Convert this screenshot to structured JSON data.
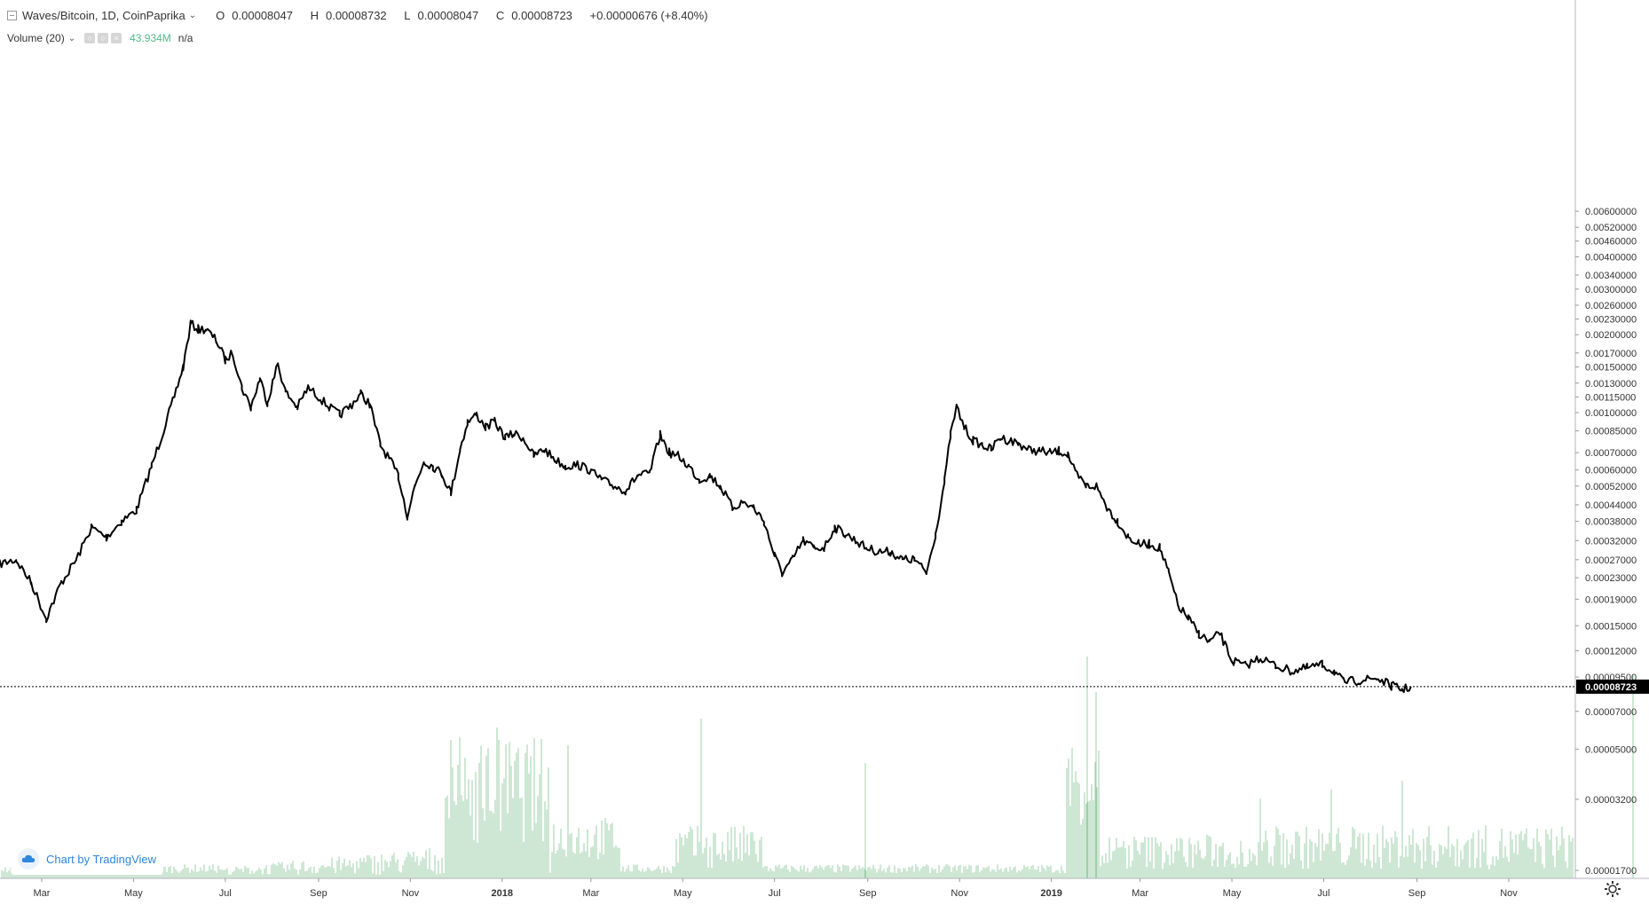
{
  "legend": {
    "title": "Waves/Bitcoin, 1D, CoinPaprika",
    "ohlc": [
      {
        "k": "O",
        "v": "0.00008047"
      },
      {
        "k": "H",
        "v": "0.00008732"
      },
      {
        "k": "L",
        "v": "0.00008047"
      },
      {
        "k": "C",
        "v": "0.00008723"
      }
    ],
    "change": "+0.00000676 (+8.40%)",
    "volume_label": "Volume (20)",
    "volume_value": "43.934M",
    "volume_ma": "n/a"
  },
  "attribution": "Chart by TradingView",
  "colors": {
    "candle": "#000000",
    "volume": "#8cc79a",
    "accent": "#2e86de",
    "price_tag": "#000000"
  },
  "chart_data": {
    "type": "line",
    "price_axis_labels": [
      0.006,
      0.0052,
      0.0046,
      0.004,
      0.0034,
      0.003,
      0.0026,
      0.0023,
      0.002,
      0.0017,
      0.0015,
      0.0013,
      0.00115,
      0.001,
      0.00085,
      0.0007,
      0.0006,
      0.00052,
      0.00044,
      0.00038,
      0.00032,
      0.00027,
      0.00023,
      0.00019,
      0.00015,
      0.00012,
      9.5e-05,
      7e-05,
      5e-05,
      3.2e-05,
      1.7e-05
    ],
    "price_axis_text": [
      "0.00600000",
      "0.00520000",
      "0.00460000",
      "0.00400000",
      "0.00340000",
      "0.00300000",
      "0.00260000",
      "0.00230000",
      "0.00200000",
      "0.00170000",
      "0.00150000",
      "0.00130000",
      "0.00115000",
      "0.00100000",
      "0.00085000",
      "0.00070000",
      "0.00060000",
      "0.00052000",
      "0.00044000",
      "0.00038000",
      "0.00032000",
      "0.00027000",
      "0.00023000",
      "0.00019000",
      "0.00015000",
      "0.00012000",
      "0.00009500",
      "0.00007000",
      "0.00005000",
      "0.00003200",
      "0.00001700"
    ],
    "last_price": 8.723e-05,
    "last_price_text": "0.00008723",
    "time_labels": [
      "Mar",
      "May",
      "Jul",
      "Sep",
      "Nov",
      "2018",
      "Mar",
      "May",
      "Jul",
      "Sep",
      "Nov",
      "2019",
      "Mar",
      "May",
      "Jul",
      "Sep",
      "Nov"
    ],
    "time_label_dates": [
      "2017-03-01",
      "2017-05-01",
      "2017-07-01",
      "2017-09-01",
      "2017-11-01",
      "2018-01-01",
      "2018-03-01",
      "2018-05-01",
      "2018-07-01",
      "2018-09-01",
      "2018-11-01",
      "2019-01-01",
      "2019-03-01",
      "2019-05-01",
      "2019-07-01",
      "2019-09-01",
      "2019-11-01"
    ],
    "price_series": [
      [
        "2017-02-01",
        0.00026
      ],
      [
        "2017-02-12",
        0.00027
      ],
      [
        "2017-02-22",
        0.00022
      ],
      [
        "2017-03-04",
        0.00016
      ],
      [
        "2017-03-14",
        0.00022
      ],
      [
        "2017-03-24",
        0.00027
      ],
      [
        "2017-04-03",
        0.00036
      ],
      [
        "2017-04-13",
        0.00033
      ],
      [
        "2017-04-23",
        0.00038
      ],
      [
        "2017-05-03",
        0.00042
      ],
      [
        "2017-05-13",
        0.00062
      ],
      [
        "2017-05-20",
        0.00082
      ],
      [
        "2017-05-27",
        0.0011
      ],
      [
        "2017-06-03",
        0.0015
      ],
      [
        "2017-06-08",
        0.0022
      ],
      [
        "2017-06-13",
        0.0021
      ],
      [
        "2017-06-18",
        0.0021
      ],
      [
        "2017-06-25",
        0.0019
      ],
      [
        "2017-07-01",
        0.0016
      ],
      [
        "2017-07-06",
        0.0017
      ],
      [
        "2017-07-12",
        0.00125
      ],
      [
        "2017-07-18",
        0.00105
      ],
      [
        "2017-07-24",
        0.00135
      ],
      [
        "2017-07-29",
        0.0011
      ],
      [
        "2017-08-05",
        0.00155
      ],
      [
        "2017-08-10",
        0.0012
      ],
      [
        "2017-08-18",
        0.00105
      ],
      [
        "2017-08-25",
        0.00125
      ],
      [
        "2017-09-01",
        0.00115
      ],
      [
        "2017-09-08",
        0.00105
      ],
      [
        "2017-09-15",
        0.00098
      ],
      [
        "2017-09-22",
        0.00106
      ],
      [
        "2017-09-29",
        0.00118
      ],
      [
        "2017-10-05",
        0.00108
      ],
      [
        "2017-10-12",
        0.00075
      ],
      [
        "2017-10-18",
        0.00066
      ],
      [
        "2017-10-24",
        0.00057
      ],
      [
        "2017-10-30",
        0.0004
      ],
      [
        "2017-11-04",
        0.00052
      ],
      [
        "2017-11-10",
        0.00065
      ],
      [
        "2017-11-16",
        0.00062
      ],
      [
        "2017-11-22",
        0.00058
      ],
      [
        "2017-11-28",
        0.00049
      ],
      [
        "2017-12-04",
        0.00072
      ],
      [
        "2017-12-09",
        0.00092
      ],
      [
        "2017-12-15",
        0.00098
      ],
      [
        "2017-12-21",
        0.00088
      ],
      [
        "2017-12-27",
        0.00092
      ],
      [
        "2018-01-03",
        0.0008
      ],
      [
        "2018-01-09",
        0.00083
      ],
      [
        "2018-01-15",
        0.0008
      ],
      [
        "2018-01-22",
        0.00068
      ],
      [
        "2018-01-29",
        0.00072
      ],
      [
        "2018-02-05",
        0.00066
      ],
      [
        "2018-02-12",
        0.00062
      ],
      [
        "2018-02-20",
        0.00063
      ],
      [
        "2018-02-28",
        0.0006
      ],
      [
        "2018-03-08",
        0.00055
      ],
      [
        "2018-03-16",
        0.00052
      ],
      [
        "2018-03-24",
        0.0005
      ],
      [
        "2018-04-01",
        0.00057
      ],
      [
        "2018-04-09",
        0.00058
      ],
      [
        "2018-04-16",
        0.00082
      ],
      [
        "2018-04-22",
        0.0007
      ],
      [
        "2018-04-28",
        0.00068
      ],
      [
        "2018-05-05",
        0.00062
      ],
      [
        "2018-05-12",
        0.00055
      ],
      [
        "2018-05-19",
        0.00057
      ],
      [
        "2018-05-26",
        0.00052
      ],
      [
        "2018-06-03",
        0.00043
      ],
      [
        "2018-06-10",
        0.00045
      ],
      [
        "2018-06-17",
        0.00043
      ],
      [
        "2018-06-24",
        0.00038
      ],
      [
        "2018-07-01",
        0.00028
      ],
      [
        "2018-07-06",
        0.00024
      ],
      [
        "2018-07-13",
        0.00027
      ],
      [
        "2018-07-20",
        0.00032
      ],
      [
        "2018-07-27",
        0.0003
      ],
      [
        "2018-08-03",
        0.0003
      ],
      [
        "2018-08-10",
        0.00036
      ],
      [
        "2018-08-17",
        0.00034
      ],
      [
        "2018-08-24",
        0.00032
      ],
      [
        "2018-08-31",
        0.0003
      ],
      [
        "2018-09-08",
        0.00029
      ],
      [
        "2018-09-16",
        0.00029
      ],
      [
        "2018-09-24",
        0.00027
      ],
      [
        "2018-10-02",
        0.00027
      ],
      [
        "2018-10-10",
        0.00024
      ],
      [
        "2018-10-16",
        0.00034
      ],
      [
        "2018-10-22",
        0.00054
      ],
      [
        "2018-10-26",
        0.00082
      ],
      [
        "2018-10-30",
        0.00105
      ],
      [
        "2018-11-04",
        0.00088
      ],
      [
        "2018-11-10",
        0.00078
      ],
      [
        "2018-11-16",
        0.00075
      ],
      [
        "2018-11-22",
        0.00072
      ],
      [
        "2018-11-28",
        0.0008
      ],
      [
        "2018-12-04",
        0.00078
      ],
      [
        "2018-12-10",
        0.00076
      ],
      [
        "2018-12-17",
        0.00072
      ],
      [
        "2018-12-24",
        0.00071
      ],
      [
        "2018-12-31",
        0.0007
      ],
      [
        "2019-01-06",
        0.00071
      ],
      [
        "2019-01-12",
        0.00069
      ],
      [
        "2019-01-17",
        0.00058
      ],
      [
        "2019-01-24",
        0.00052
      ],
      [
        "2019-01-31",
        0.00052
      ],
      [
        "2019-02-07",
        0.00043
      ],
      [
        "2019-02-14",
        0.00038
      ],
      [
        "2019-02-21",
        0.00033
      ],
      [
        "2019-02-28",
        0.00031
      ],
      [
        "2019-03-07",
        0.00031
      ],
      [
        "2019-03-14",
        0.0003
      ],
      [
        "2019-03-20",
        0.00024
      ],
      [
        "2019-03-26",
        0.00018
      ],
      [
        "2019-04-02",
        0.00016
      ],
      [
        "2019-04-09",
        0.00014
      ],
      [
        "2019-04-16",
        0.00013
      ],
      [
        "2019-04-23",
        0.00014
      ],
      [
        "2019-05-01",
        0.00011
      ],
      [
        "2019-05-10",
        0.000105
      ],
      [
        "2019-05-20",
        0.000113
      ],
      [
        "2019-05-30",
        0.000105
      ],
      [
        "2019-06-10",
        0.0001
      ],
      [
        "2019-06-20",
        0.000103
      ],
      [
        "2019-06-30",
        0.000106
      ],
      [
        "2019-07-08",
        0.0001
      ],
      [
        "2019-07-14",
        9.1e-05
      ],
      [
        "2019-07-24",
        9.2e-05
      ],
      [
        "2019-08-05",
        9.4e-05
      ],
      [
        "2019-08-15",
        8.8e-05
      ],
      [
        "2019-08-22",
        8.5e-05
      ],
      [
        "2019-08-28",
        8.7e-05
      ]
    ],
    "volume_note": "Volume (20) histogram"
  }
}
